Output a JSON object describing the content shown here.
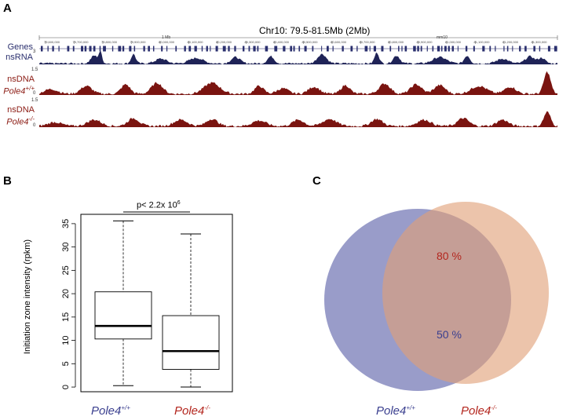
{
  "figure": {
    "panel_a": {
      "letter": "A",
      "region_title": "Chr10: 79.5-81.5Mb (2Mb)",
      "scale_left": "1 Mb",
      "scale_right": "mm10",
      "tracks": [
        {
          "name": "Genes",
          "max": ""
        },
        {
          "name": "nsRNA",
          "max": "3"
        },
        {
          "name": "nsDNA",
          "sub": "Pole4",
          "sup": "+/+",
          "max": "1.5"
        },
        {
          "name": "nsDNA",
          "sub": "Pole4",
          "sup": "-/-",
          "max": "1.5"
        }
      ],
      "zero": "0",
      "coords": [
        "79,600,000",
        "79,700,000",
        "79,800,000",
        "79,900,000",
        "80,000,000",
        "80,100,000",
        "80,200,000",
        "80,300,000",
        "80,400,000",
        "80,500,000",
        "80,600,000",
        "80,700,000",
        "80,800,000",
        "80,900,000",
        "81,000,000",
        "81,100,000",
        "81,200,000",
        "81,300,000"
      ]
    },
    "panel_b": {
      "letter": "B",
      "pvalue_text": "p< 2.2x 10",
      "pvalue_exp": "6",
      "ylabel": "Initiation zone intensity (rpkm)",
      "groups": [
        {
          "name": "Pole4",
          "sup": "+/+",
          "color": "#3a3f8f"
        },
        {
          "name": "Pole4",
          "sup": "-/-",
          "color": "#b3261e"
        }
      ]
    },
    "panel_c": {
      "letter": "C",
      "overlap_top": "80 %",
      "overlap_bottom": "50 %",
      "left_label": "Pole4",
      "left_sup": "+/+",
      "right_label": "Pole4",
      "right_sup": "-/-",
      "left_color": "#5a5fa8",
      "right_color": "#e0a078"
    }
  },
  "chart_data": {
    "type": "box",
    "title": "",
    "xlabel": "",
    "ylabel": "Initiation zone intensity (rpkm)",
    "ylim": [
      -1,
      37
    ],
    "yticks": [
      0,
      5,
      10,
      15,
      20,
      25,
      30,
      35
    ],
    "categories": [
      "Pole4+/+",
      "Pole4-/-"
    ],
    "boxes": [
      {
        "name": "Pole4+/+",
        "min": 0.3,
        "q1": 10.3,
        "median": 13.1,
        "q3": 20.4,
        "max": 35.6
      },
      {
        "name": "Pole4-/-",
        "min": 0.0,
        "q1": 3.8,
        "median": 7.7,
        "q3": 15.3,
        "max": 32.8
      }
    ]
  }
}
